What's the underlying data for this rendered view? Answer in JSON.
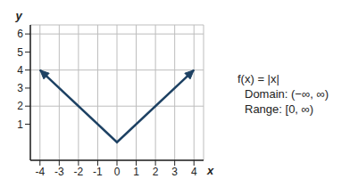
{
  "chart_data": {
    "type": "line",
    "x": [
      -4,
      0,
      4
    ],
    "series": [
      {
        "name": "f(x) = |x|",
        "color": "#1d4163",
        "values": [
          4,
          0,
          4
        ],
        "marker": "arrow"
      }
    ],
    "xlim": [
      -4.5,
      4.5
    ],
    "ylim": [
      -1,
      6.5
    ],
    "xticks": [
      -4,
      -3,
      -2,
      -1,
      0,
      1,
      2,
      3,
      4
    ],
    "yticks": [
      1,
      2,
      3,
      4,
      5,
      6
    ],
    "x_label": "x",
    "y_label": "y",
    "grid": true,
    "annotations": [
      "Domain: (−∞, ∞)",
      "Range: [0, ∞)"
    ]
  }
}
